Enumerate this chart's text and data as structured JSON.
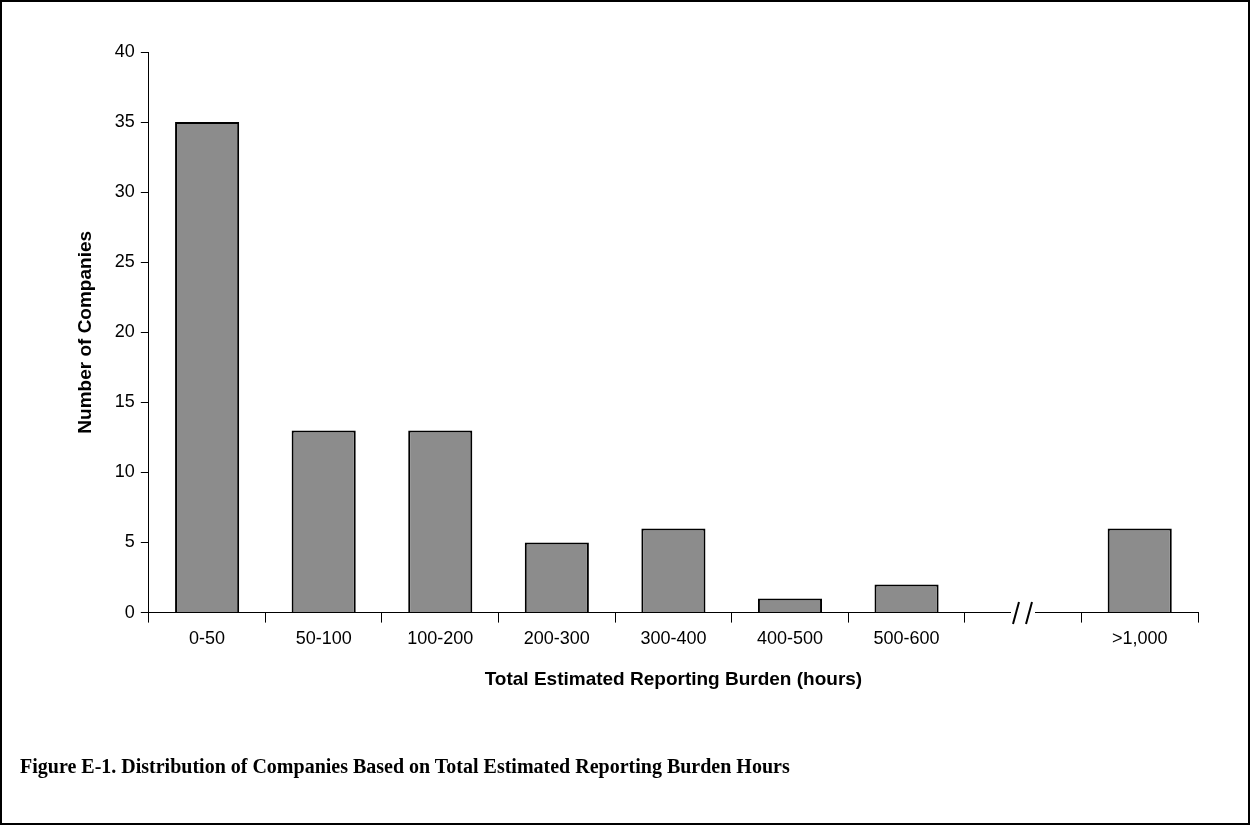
{
  "chart_data": {
    "type": "bar",
    "categories": [
      "0-50",
      "50-100",
      "100-200",
      "200-300",
      "300-400",
      "400-500",
      "500-600",
      null,
      ">1,000"
    ],
    "values": [
      35,
      13,
      13,
      5,
      6,
      1,
      2,
      null,
      6
    ],
    "color": "#8c8c8c",
    "xlabel": "Total Estimated Reporting Burden (hours)",
    "ylabel": "Number of Companies",
    "ylim": [
      0,
      40
    ],
    "yticks": [
      0,
      5,
      10,
      15,
      20,
      25,
      30,
      35,
      40
    ],
    "grid": false,
    "legend": false,
    "annotations": [
      "Figure E-1.  Distribution of Companies Based on Total Estimated Reporting Burden Hours"
    ]
  }
}
